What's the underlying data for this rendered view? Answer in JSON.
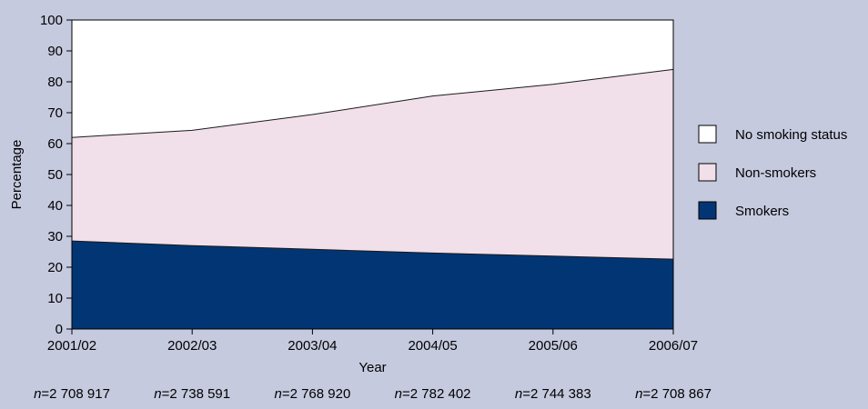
{
  "chart_data": {
    "type": "area",
    "stacked": true,
    "title": "",
    "xlabel": "Year",
    "ylabel": "Percentage",
    "ylim": [
      0,
      100
    ],
    "yticks": [
      0,
      10,
      20,
      30,
      40,
      50,
      60,
      70,
      80,
      90,
      100
    ],
    "categories": [
      "2001/02",
      "2002/03",
      "2003/04",
      "2004/05",
      "2005/06",
      "2006/07"
    ],
    "sample_sizes": [
      "2 708 917",
      "2 738 591",
      "2 768 920",
      "2 782 402",
      "2 744 383",
      "2 708 867"
    ],
    "sample_size_prefix": "n",
    "sample_size_equals": "=",
    "grid": false,
    "legend_position": "right",
    "series": [
      {
        "name": "Smokers",
        "values": [
          28.5,
          27,
          25.8,
          24.6,
          23.6,
          22.6
        ],
        "color": "#023574"
      },
      {
        "name": "Non-smokers",
        "values": [
          33.5,
          37.3,
          43.6,
          50.8,
          55.6,
          61.4
        ],
        "color": "#f1dfea"
      },
      {
        "name": "No smoking status",
        "values": [
          38,
          35.7,
          30.6,
          24.6,
          20.8,
          16
        ],
        "color": "#ffffff"
      }
    ],
    "legend_order": [
      "No smoking status",
      "Non-smokers",
      "Smokers"
    ],
    "background_color": "#c6cadf"
  }
}
